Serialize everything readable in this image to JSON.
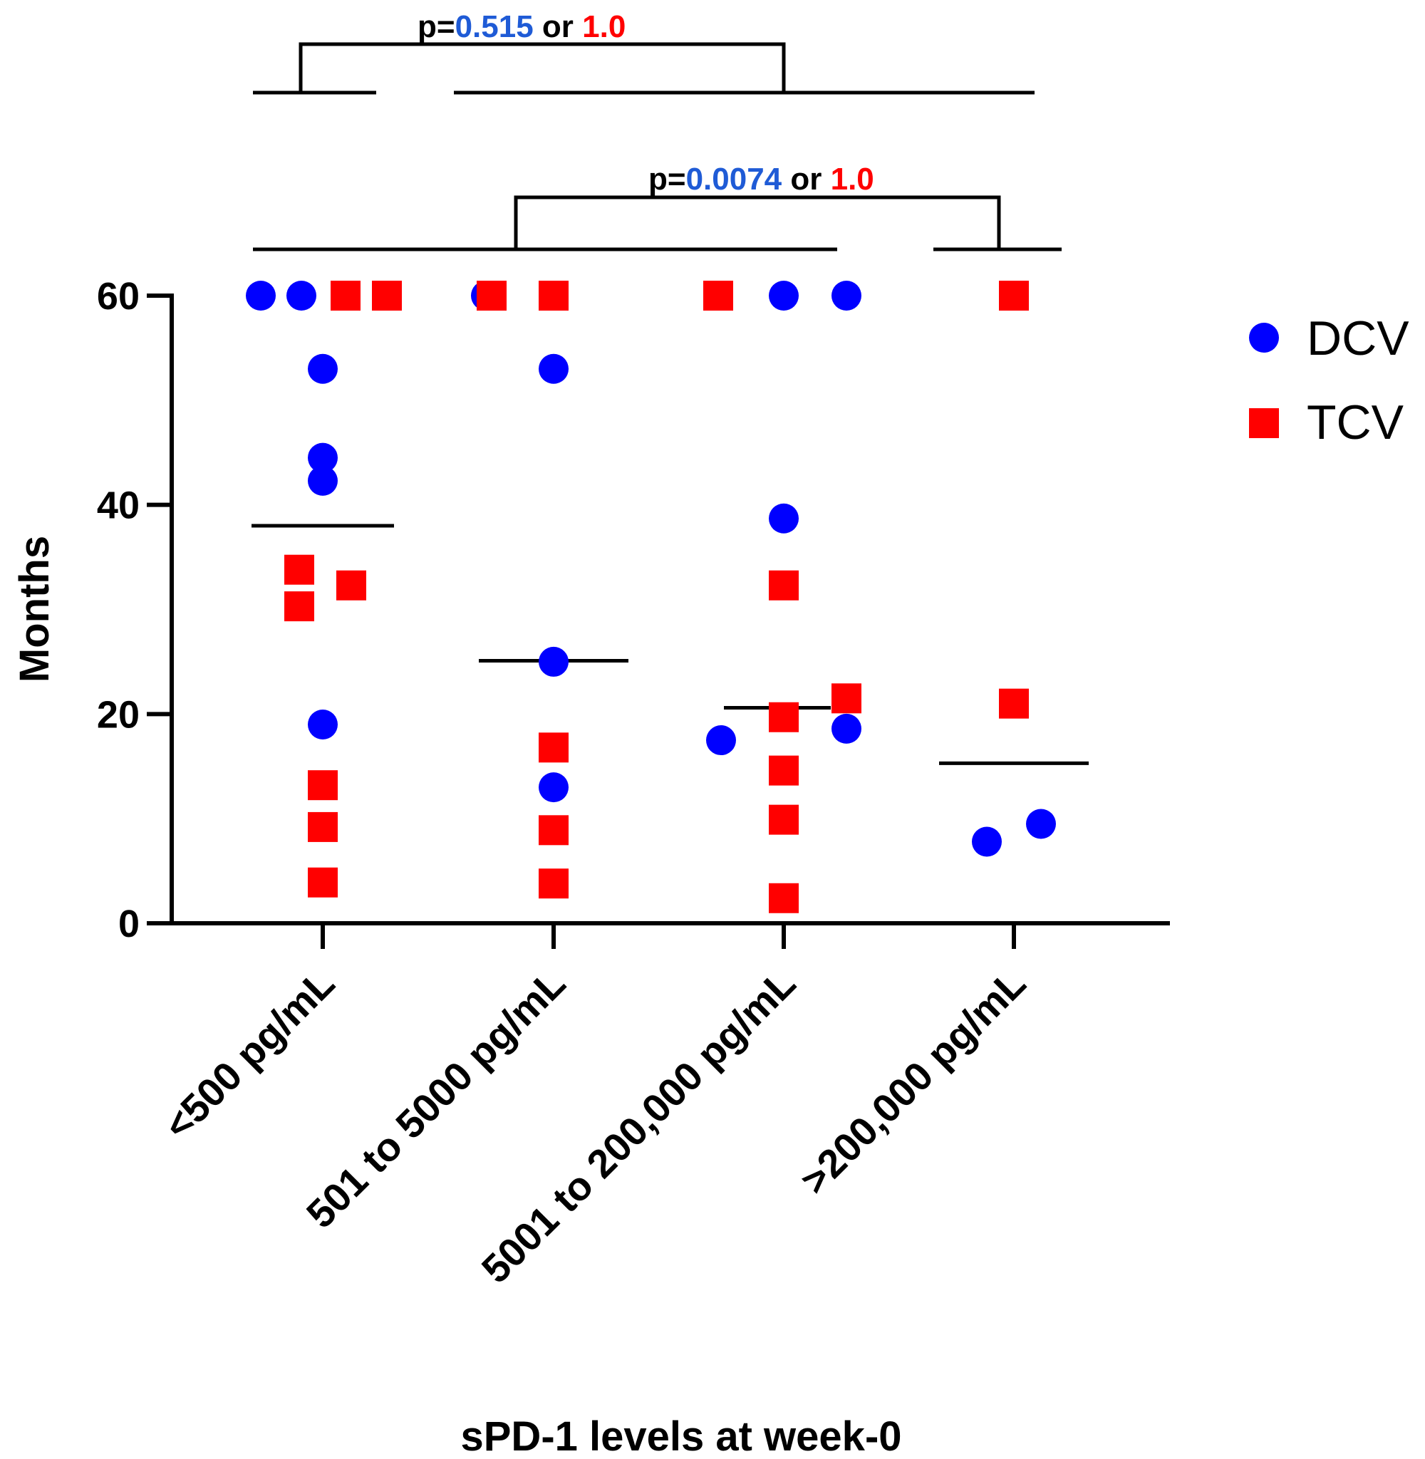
{
  "chart_data": {
    "type": "scatter",
    "xlabel": "sPD-1 levels at week-0",
    "ylabel": "Months",
    "ylim": [
      0,
      60
    ],
    "yticks": [
      "0",
      "20",
      "40",
      "60"
    ],
    "categories": [
      "<500 pg/mL",
      "501 to 5000 pg/mL",
      "5001 to 200,000 pg/mL",
      ">200,000 pg/mL"
    ],
    "legend": {
      "position": "right"
    },
    "colors": {
      "DCV": "#0000ff",
      "TCV": "#ff0000",
      "p_blue": "#1f5bd6",
      "p_red": "#ff0000"
    },
    "series": [
      {
        "name": "DCV",
        "marker": "circle",
        "points": [
          {
            "category": "<500 pg/mL",
            "y": 60
          },
          {
            "category": "<500 pg/mL",
            "y": 60
          },
          {
            "category": "<500 pg/mL",
            "y": 53
          },
          {
            "category": "<500 pg/mL",
            "y": 44.5
          },
          {
            "category": "<500 pg/mL",
            "y": 42.3
          },
          {
            "category": "<500 pg/mL",
            "y": 19
          },
          {
            "category": "501 to 5000 pg/mL",
            "y": 60
          },
          {
            "category": "501 to 5000 pg/mL",
            "y": 53
          },
          {
            "category": "501 to 5000 pg/mL",
            "y": 25
          },
          {
            "category": "501 to 5000 pg/mL",
            "y": 13
          },
          {
            "category": "5001 to 200,000 pg/mL",
            "y": 60
          },
          {
            "category": "5001 to 200,000 pg/mL",
            "y": 60
          },
          {
            "category": "5001 to 200,000 pg/mL",
            "y": 38.7
          },
          {
            "category": "5001 to 200,000 pg/mL",
            "y": 18.6
          },
          {
            "category": "5001 to 200,000 pg/mL",
            "y": 17.5
          },
          {
            "category": ">200,000 pg/mL",
            "y": 9.5
          },
          {
            "category": ">200,000 pg/mL",
            "y": 7.8
          }
        ]
      },
      {
        "name": "TCV",
        "marker": "square",
        "points": [
          {
            "category": "<500 pg/mL",
            "y": 60
          },
          {
            "category": "<500 pg/mL",
            "y": 60
          },
          {
            "category": "<500 pg/mL",
            "y": 33.8
          },
          {
            "category": "<500 pg/mL",
            "y": 32.3
          },
          {
            "category": "<500 pg/mL",
            "y": 30.3
          },
          {
            "category": "<500 pg/mL",
            "y": 13.2
          },
          {
            "category": "<500 pg/mL",
            "y": 9.2
          },
          {
            "category": "<500 pg/mL",
            "y": 3.9
          },
          {
            "category": "501 to 5000 pg/mL",
            "y": 60
          },
          {
            "category": "501 to 5000 pg/mL",
            "y": 60
          },
          {
            "category": "501 to 5000 pg/mL",
            "y": 16.8
          },
          {
            "category": "501 to 5000 pg/mL",
            "y": 8.9
          },
          {
            "category": "501 to 5000 pg/mL",
            "y": 3.8
          },
          {
            "category": "5001 to 200,000 pg/mL",
            "y": 60
          },
          {
            "category": "5001 to 200,000 pg/mL",
            "y": 32.3
          },
          {
            "category": "5001 to 200,000 pg/mL",
            "y": 21.5
          },
          {
            "category": "5001 to 200,000 pg/mL",
            "y": 19.7
          },
          {
            "category": "5001 to 200,000 pg/mL",
            "y": 14.6
          },
          {
            "category": "5001 to 200,000 pg/mL",
            "y": 9.9
          },
          {
            "category": "5001 to 200,000 pg/mL",
            "y": 2.4
          },
          {
            "category": ">200,000 pg/mL",
            "y": 60
          },
          {
            "category": ">200,000 pg/mL",
            "y": 21
          }
        ]
      }
    ],
    "medians": [
      {
        "category": "<500 pg/mL",
        "y": 38
      },
      {
        "category": "501 to 5000 pg/mL",
        "y": 25.1
      },
      {
        "category": "5001 to 200,000 pg/mL",
        "y": 20.6
      },
      {
        "category": ">200,000 pg/mL",
        "y": 15.3
      }
    ],
    "annotations": [
      {
        "text_prefix": "p=",
        "value_blue": "0.515",
        "middle": " or ",
        "value_red": "1.0",
        "groups": [
          "<500 pg/mL",
          "501 to 5000 pg/mL|5001 to 200,000 pg/mL|>200,000 pg/mL"
        ]
      },
      {
        "text_prefix": "p=",
        "value_blue": "0.0074",
        "middle": " or ",
        "value_red": "1.0",
        "groups": [
          "<500 pg/mL|501 to 5000 pg/mL|5001 to 200,000 pg/mL",
          ">200,000 pg/mL"
        ]
      }
    ]
  }
}
